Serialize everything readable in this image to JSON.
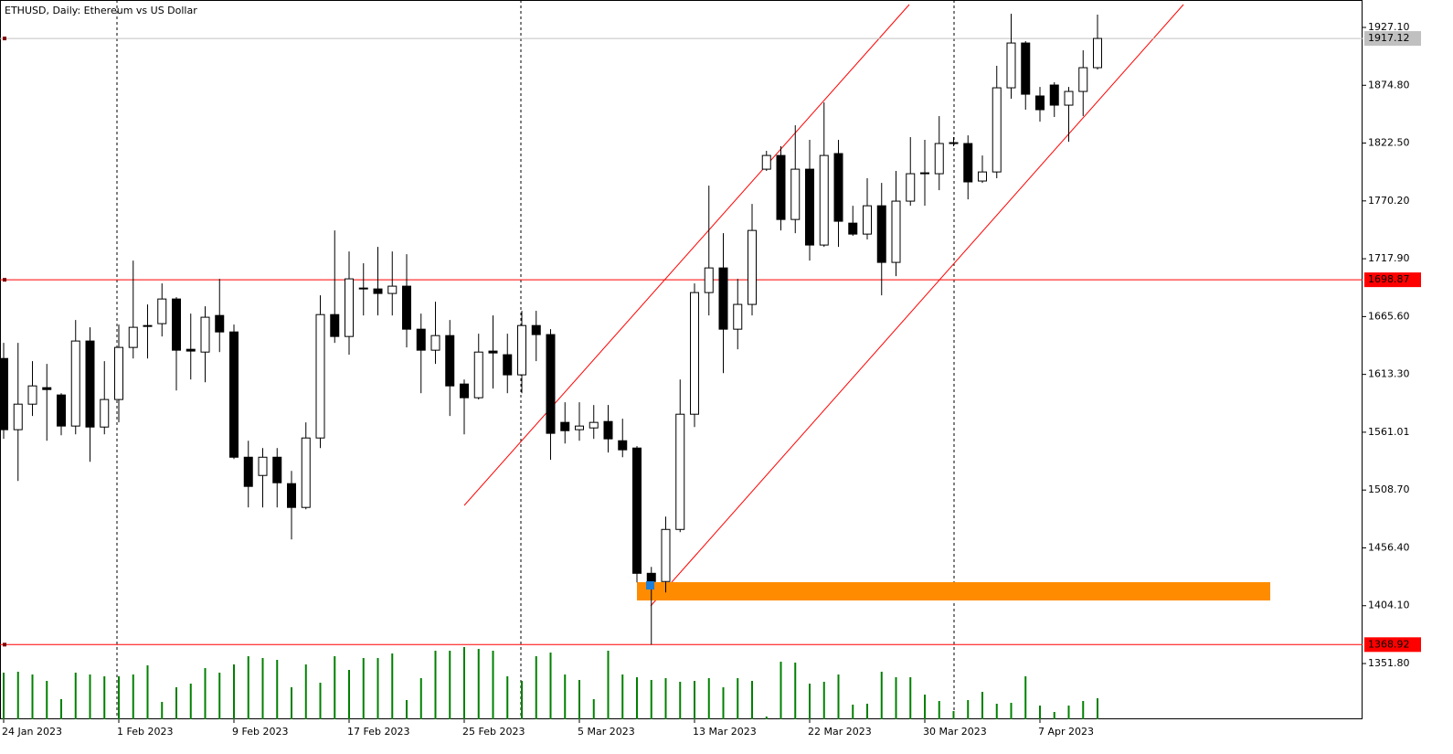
{
  "chart_data": {
    "type": "candlestick",
    "title": "ETHUSD, Daily:  Ethereum vs US Dollar",
    "categories": [
      "24 Jan 2023",
      null,
      null,
      null,
      null,
      null,
      null,
      null,
      "1 Feb 2023",
      null,
      null,
      null,
      null,
      null,
      null,
      null,
      "9 Feb 2023",
      null,
      null,
      null,
      null,
      null,
      null,
      null,
      "17 Feb 2023",
      null,
      null,
      null,
      null,
      null,
      null,
      null,
      "25 Feb 2023",
      null,
      null,
      null,
      null,
      null,
      null,
      null,
      "5 Mar 2023",
      null,
      null,
      null,
      null,
      null,
      null,
      null,
      "13 Mar 2023",
      null,
      null,
      null,
      null,
      null,
      null,
      null,
      "22 Mar 2023",
      null,
      null,
      null,
      null,
      null,
      null,
      null,
      "30 Mar 2023",
      null,
      null,
      null,
      null,
      null,
      null,
      null,
      "7 Apr 2023",
      null,
      null,
      null,
      null
    ],
    "open": [
      1627.7,
      1563.3,
      1586.4,
      1601.3,
      1594.7,
      1566.6,
      1643.5,
      1565.7,
      1590.6,
      1637.7,
      1656.7,
      1659.2,
      1681.5,
      1636.0,
      1633.5,
      1666.6,
      1651.7,
      1538.4,
      1521.9,
      1538.4,
      1514.5,
      1493.0,
      1555.8,
      1667.4,
      1647.6,
      1691.4,
      1690.6,
      1686.5,
      1693.1,
      1654.2,
      1635.2,
      1648.4,
      1604.6,
      1592.2,
      1634.4,
      1631.1,
      1612.9,
      1657.5,
      1649.3,
      1569.9,
      1563.3,
      1564.9,
      1570.7,
      1553.3,
      1546.7,
      1433.4,
      1426.0,
      1473.1,
      1577.3,
      1687.3,
      1709.6,
      1654.2,
      1676.6,
      1798.9,
      1811.3,
      1753.4,
      1798.9,
      1730.3,
      1813.0,
      1750.1,
      1740.2,
      1765.8,
      1714.6,
      1770.0,
      1794.8,
      1794.8,
      1822.9,
      1822.1,
      1788.2,
      1796.4,
      1872.5,
      1913.0,
      1865.1,
      1875.0,
      1856.8,
      1869.2,
      1890.7
    ],
    "high": [
      1641.8,
      1641.8,
      1625.3,
      1622.8,
      1596.3,
      1662.5,
      1655.9,
      1625.3,
      1658.4,
      1716.2,
      1676.6,
      1695.6,
      1683.2,
      1668.3,
      1674.9,
      1699.7,
      1658.4,
      1553.3,
      1546.7,
      1546.7,
      1526.0,
      1569.9,
      1684.8,
      1743.5,
      1724.5,
      1713.8,
      1728.6,
      1724.5,
      1722.0,
      1668.3,
      1679.0,
      1662.5,
      1608.7,
      1650.1,
      1666.6,
      1650.1,
      1670.8,
      1670.8,
      1654.2,
      1588.1,
      1588.1,
      1585.6,
      1585.6,
      1573.2,
      1548.4,
      1439.2,
      1484.7,
      1608.7,
      1695.6,
      1784.0,
      1741.0,
      1699.7,
      1767.5,
      1815.5,
      1819.6,
      1838.6,
      1825.4,
      1859.3,
      1825.4,
      1765.8,
      1790.7,
      1786.5,
      1797.3,
      1827.9,
      1825.4,
      1846.9,
      1827.9,
      1829.5,
      1811.3,
      1892.4,
      1939.5,
      1914.7,
      1873.3,
      1877.5,
      1873.3,
      1906.4,
      1938.7
    ],
    "low": [
      1555.0,
      1516.9,
      1575.7,
      1553.3,
      1558.3,
      1559.1,
      1534.3,
      1559.1,
      1569.9,
      1627.7,
      1627.7,
      1647.6,
      1598.8,
      1608.7,
      1606.2,
      1633.5,
      1536.8,
      1493.0,
      1493.0,
      1493.0,
      1464.0,
      1491.3,
      1546.7,
      1641.8,
      1631.1,
      1666.6,
      1666.6,
      1666.6,
      1637.7,
      1596.3,
      1622.8,
      1575.7,
      1559.1,
      1590.6,
      1600.5,
      1596.3,
      1596.3,
      1625.3,
      1536.0,
      1550.8,
      1553.3,
      1555.0,
      1542.6,
      1538.4,
      1425.2,
      1368.92,
      1416.1,
      1470.6,
      1565.7,
      1666.6,
      1614.5,
      1636.0,
      1666.6,
      1797.3,
      1743.5,
      1741.0,
      1716.2,
      1728.6,
      1728.6,
      1738.6,
      1735.3,
      1684.8,
      1702.2,
      1765.8,
      1765.8,
      1779.9,
      1819.6,
      1771.6,
      1786.5,
      1790.7,
      1862.6,
      1852.7,
      1841.9,
      1846.1,
      1823.7,
      1846.9,
      1889.0
    ],
    "close": [
      1563.3,
      1586.4,
      1602.9,
      1599.6,
      1566.6,
      1643.5,
      1565.7,
      1590.6,
      1637.7,
      1655.9,
      1657.5,
      1681.5,
      1635.2,
      1634.4,
      1665.0,
      1651.7,
      1538.4,
      1512.0,
      1538.4,
      1515.3,
      1493.0,
      1555.8,
      1667.4,
      1647.6,
      1699.7,
      1690.6,
      1686.5,
      1693.1,
      1654.2,
      1635.2,
      1648.4,
      1602.9,
      1592.2,
      1633.5,
      1632.7,
      1612.9,
      1657.5,
      1649.3,
      1560.0,
      1562.4,
      1566.6,
      1569.9,
      1555.0,
      1545.1,
      1433.4,
      1426.0,
      1473.1,
      1577.3,
      1687.3,
      1709.6,
      1654.2,
      1676.6,
      1743.5,
      1811.3,
      1753.4,
      1798.9,
      1730.3,
      1811.3,
      1751.8,
      1740.2,
      1765.8,
      1714.6,
      1770.0,
      1794.8,
      1795.6,
      1822.1,
      1822.1,
      1787.4,
      1796.4,
      1872.5,
      1913.0,
      1866.7,
      1852.7,
      1856.8,
      1869.2,
      1890.7,
      1917.12
    ],
    "volume": [
      51,
      52,
      49,
      42,
      22,
      51,
      49,
      47,
      47,
      49,
      59,
      19,
      35,
      39,
      56,
      51,
      60,
      69,
      67,
      65,
      35,
      60,
      40,
      69,
      54,
      67,
      67,
      72,
      21,
      45,
      75,
      75,
      79,
      77,
      75,
      47,
      42,
      69,
      73,
      49,
      43,
      22,
      75,
      49,
      46,
      43,
      45,
      41,
      42,
      45,
      35,
      45,
      42,
      3,
      63,
      62,
      39,
      41,
      49,
      16,
      17,
      52,
      46,
      46,
      27,
      20,
      9,
      21,
      30,
      17,
      18,
      47,
      15,
      8,
      15,
      20,
      23
    ],
    "volume_lim": [
      0,
      100
    ],
    "ylim": [
      1301.4,
      1951.9
    ],
    "yticks": [
      {
        "value": 1927.1,
        "label": "1927.10"
      },
      {
        "value": 1874.8,
        "label": "1874.80"
      },
      {
        "value": 1822.5,
        "label": "1822.50"
      },
      {
        "value": 1770.2,
        "label": "1770.20"
      },
      {
        "value": 1717.9,
        "label": "1717.90"
      },
      {
        "value": 1665.6,
        "label": "1665.60"
      },
      {
        "value": 1613.3,
        "label": "1613.30"
      },
      1561.01,
      {
        "value": 1508.7,
        "label": "1508.70"
      },
      {
        "value": 1456.4,
        "label": "1456.40"
      },
      {
        "value": 1404.1,
        "label": "1404.10"
      },
      {
        "value": 1351.8,
        "label": "1351.80"
      }
    ],
    "current_price": 1917.12,
    "levels": [
      1698.87,
      1368.92
    ],
    "up_color": "#ffffff",
    "down_color": "#000000",
    "volume_color": "#008000",
    "level_color": "#ff0000",
    "current_color": "#c0c0c0"
  }
}
